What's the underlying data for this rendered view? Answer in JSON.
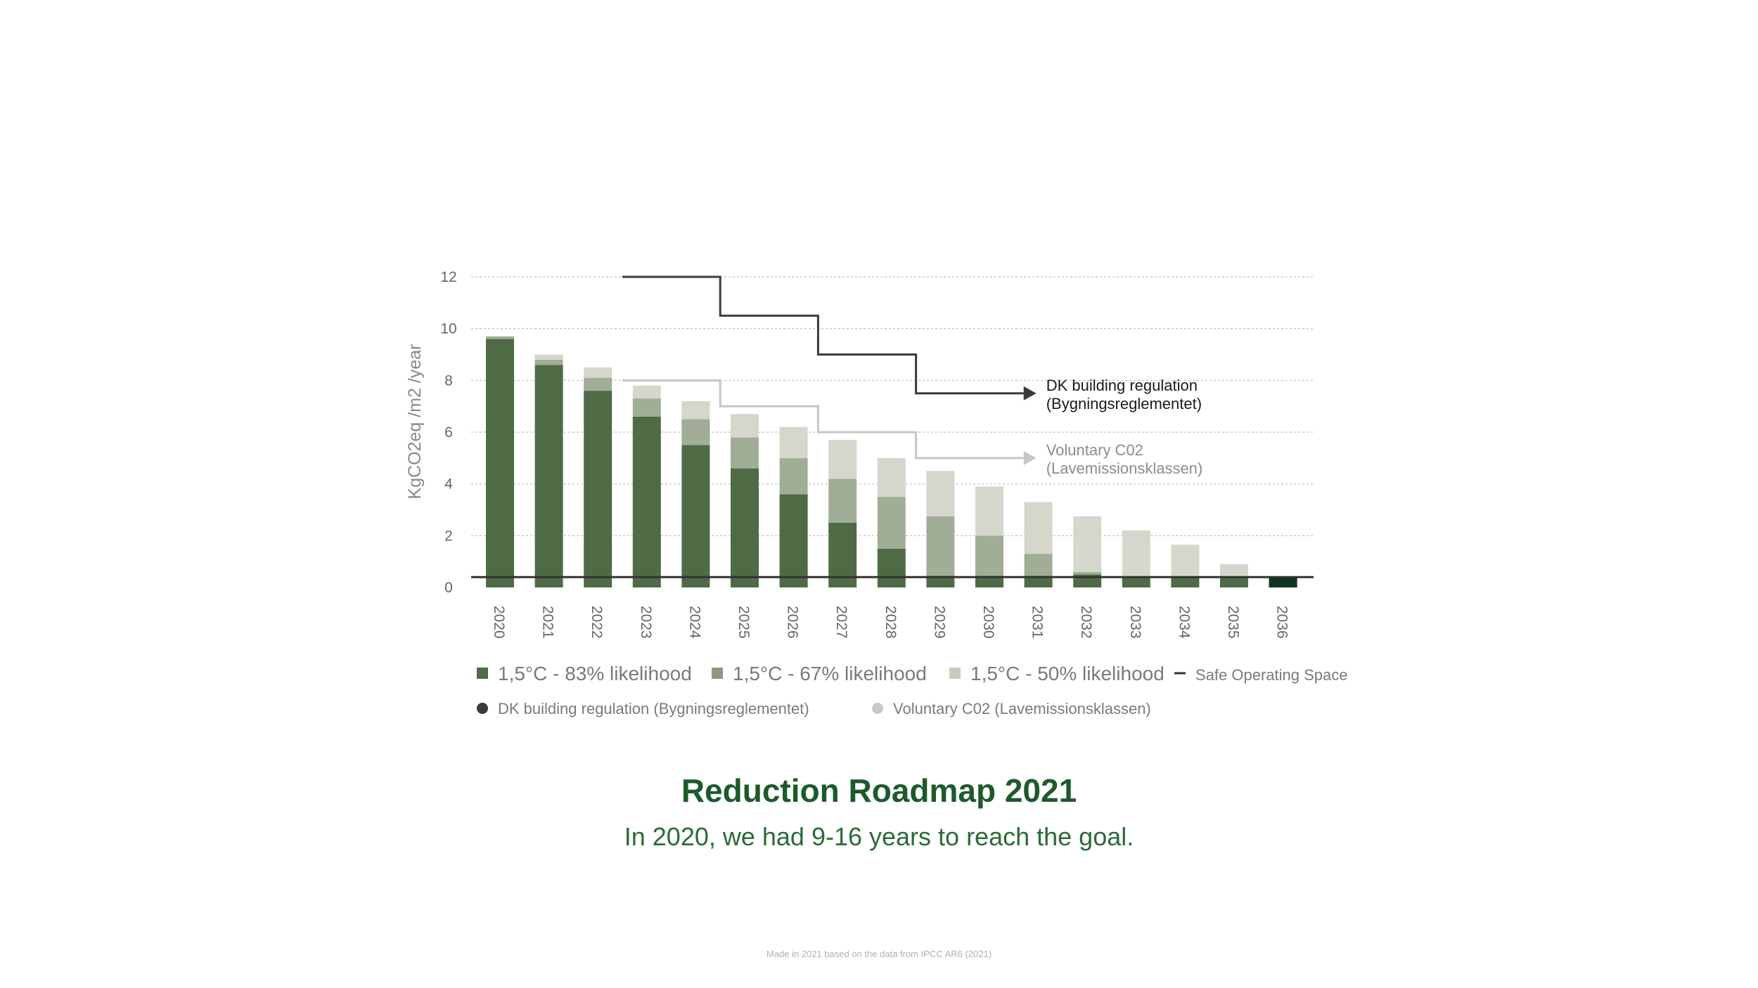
{
  "chart_data": {
    "type": "bar",
    "stacked": true,
    "title": "Reduction Roadmap 2021",
    "subtitle": "In 2020, we had 9-16 years to reach the goal.",
    "ylabel": "KgCO2eq /m2 /year",
    "xlabel": "",
    "ylim": [
      0,
      12
    ],
    "yticks": [
      0,
      2,
      4,
      6,
      8,
      10,
      12
    ],
    "grid": true,
    "categories": [
      "2020",
      "2021",
      "2022",
      "2023",
      "2024",
      "2025",
      "2026",
      "2027",
      "2028",
      "2029",
      "2030",
      "2031",
      "2032",
      "2033",
      "2034",
      "2035",
      "2036"
    ],
    "series": [
      {
        "name": "1,5°C - 83% likelihood",
        "color": "#4e6b45",
        "values": [
          9.6,
          8.6,
          7.6,
          6.6,
          5.5,
          4.6,
          3.6,
          2.5,
          1.5,
          0.45,
          0.45,
          0.45,
          0.5,
          0.4,
          0.4,
          0.4,
          0.4
        ]
      },
      {
        "name": "1,5°C - 67% likelihood",
        "color": "#a1ad97",
        "values": [
          0.1,
          0.2,
          0.5,
          0.7,
          1.0,
          1.2,
          1.4,
          1.7,
          2.0,
          2.3,
          1.55,
          0.85,
          0.1,
          0.0,
          0.0,
          0.0,
          0.0
        ]
      },
      {
        "name": "1,5°C - 50% likelihood",
        "color": "#d5d6cc",
        "values": [
          0.0,
          0.2,
          0.4,
          0.5,
          0.7,
          0.9,
          1.2,
          1.5,
          1.5,
          1.75,
          1.9,
          2.0,
          2.15,
          1.8,
          1.25,
          0.5,
          0.0
        ]
      }
    ],
    "safe_operating_space": {
      "name": "Safe Operating Space",
      "value": 0.4,
      "color": "#333333"
    },
    "highlight_bar": {
      "category": "2036",
      "value": 0.4,
      "color": "#0f3520"
    },
    "step_lines": [
      {
        "name": "DK building regulation (Bygningsreglementet)",
        "color": "#3a3a3a",
        "steps": [
          {
            "from": 2023,
            "to": 2025,
            "y": 12.0
          },
          {
            "from": 2025,
            "to": 2027,
            "y": 10.5
          },
          {
            "from": 2027,
            "to": 2029,
            "y": 9.0
          },
          {
            "from": 2029,
            "to": 2031.2,
            "y": 7.5
          }
        ],
        "annotation": [
          "DK building regulation",
          "(Bygningsreglementet)"
        ]
      },
      {
        "name": "Voluntary C02 (Lavemissionsklassen)",
        "color": "#c6c6c6",
        "steps": [
          {
            "from": 2023,
            "to": 2025,
            "y": 8.0
          },
          {
            "from": 2025,
            "to": 2027,
            "y": 7.0
          },
          {
            "from": 2027,
            "to": 2029,
            "y": 6.0
          },
          {
            "from": 2029,
            "to": 2031.2,
            "y": 5.0
          }
        ],
        "annotation": [
          "Voluntary C02",
          "(Lavemissionsklassen)"
        ]
      }
    ],
    "legend": {
      "row1": [
        {
          "label": "1,5°C - 83% likelihood",
          "marker": "square",
          "color": "#4e6b45"
        },
        {
          "label": "1,5°C - 67% likelihood",
          "marker": "square",
          "color": "#8d9a82"
        },
        {
          "label": "1,5°C - 50% likelihood",
          "marker": "square",
          "color": "#c8cabd"
        },
        {
          "label": "Safe Operating Space",
          "marker": "dash",
          "color": "#333333"
        }
      ],
      "row2": [
        {
          "label": "DK building regulation (Bygningsreglementet)",
          "marker": "circle",
          "color": "#3a3a3a"
        },
        {
          "label": "Voluntary C02 (Lavemissionsklassen)",
          "marker": "circle",
          "color": "#c8c8c8"
        }
      ],
      "placement": "bottom"
    }
  },
  "footnote": "Made in 2021 based on the data from IPCC AR6 (2021)"
}
